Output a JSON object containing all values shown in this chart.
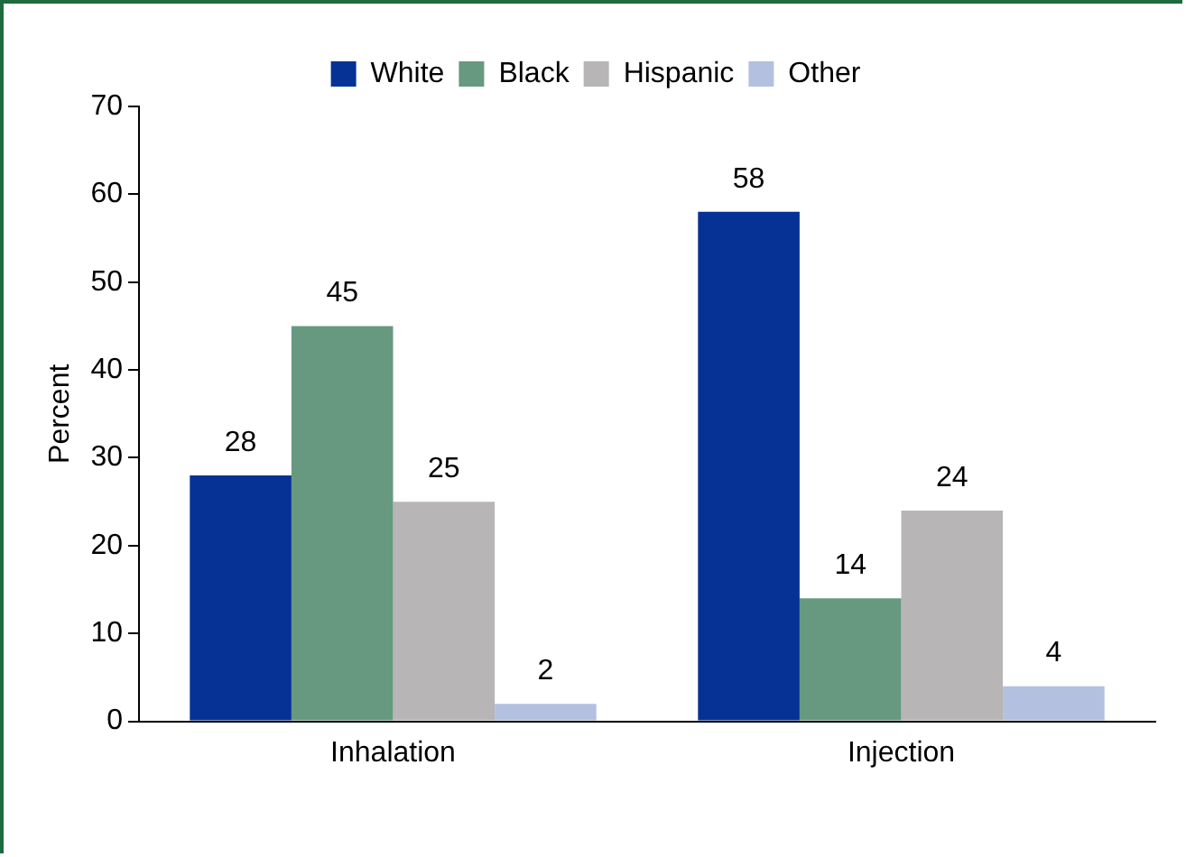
{
  "chart_data": {
    "type": "bar",
    "ylabel": "Percent",
    "categories": [
      "Inhalation",
      "Injection"
    ],
    "series": [
      {
        "name": "White",
        "color": "#063296",
        "values": [
          28,
          58
        ]
      },
      {
        "name": "Black",
        "color": "#669980",
        "values": [
          45,
          14
        ]
      },
      {
        "name": "Hispanic",
        "color": "#b7b5b5",
        "values": [
          25,
          24
        ]
      },
      {
        "name": "Other",
        "color": "#b3c0e0",
        "values": [
          2,
          4
        ]
      }
    ],
    "ylim": [
      0,
      70
    ],
    "yticks": [
      0,
      10,
      20,
      30,
      40,
      50,
      60,
      70
    ],
    "grid": false,
    "legend": "top",
    "data_labels": true
  }
}
